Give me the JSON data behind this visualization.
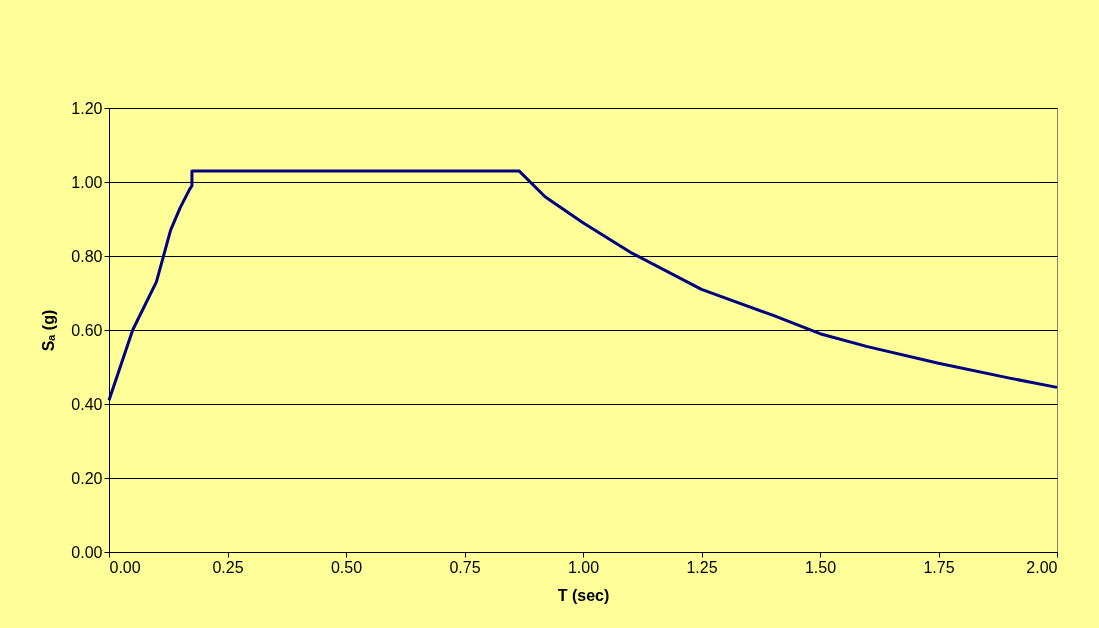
{
  "chart_data": {
    "type": "line",
    "xlabel": "T (sec)",
    "ylabel": "Sₐ (g)",
    "x": [
      0,
      0.05,
      0.1,
      0.13,
      0.15,
      0.17,
      0.175,
      0.175,
      0.865,
      0.92,
      1.0,
      1.1,
      1.25,
      1.4,
      1.5,
      1.6,
      1.75,
      1.9,
      2.0
    ],
    "series": [
      {
        "color": "#000080",
        "values": [
          0.41,
          0.6,
          0.73,
          0.87,
          0.93,
          0.98,
          0.99,
          1.03,
          1.03,
          0.96,
          0.89,
          0.81,
          0.71,
          0.64,
          0.59,
          0.555,
          0.51,
          0.47,
          0.445
        ]
      }
    ],
    "xlim": [
      0,
      2
    ],
    "ylim": [
      0,
      1.2
    ],
    "xticks": [
      {
        "value": 0,
        "label": "0.00"
      },
      {
        "value": 0.25,
        "label": "0.25"
      },
      {
        "value": 0.5,
        "label": "0.50"
      },
      {
        "value": 0.75,
        "label": "0.75"
      },
      {
        "value": 1,
        "label": "1.00"
      },
      {
        "value": 1.25,
        "label": "1.25"
      },
      {
        "value": 1.5,
        "label": "1.50"
      },
      {
        "value": 1.75,
        "label": "1.75"
      },
      {
        "value": 2,
        "label": "2.00"
      }
    ],
    "yticks": [
      {
        "value": 0,
        "label": "0.00"
      },
      {
        "value": 0.2,
        "label": "0.20"
      },
      {
        "value": 0.4,
        "label": "0.40"
      },
      {
        "value": 0.6,
        "label": "0.60"
      },
      {
        "value": 0.8,
        "label": "0.80"
      },
      {
        "value": 1,
        "label": "1.00"
      },
      {
        "value": 1.2,
        "label": "1.20"
      }
    ],
    "grid": "y",
    "marker": "none",
    "line_style": "solid"
  }
}
